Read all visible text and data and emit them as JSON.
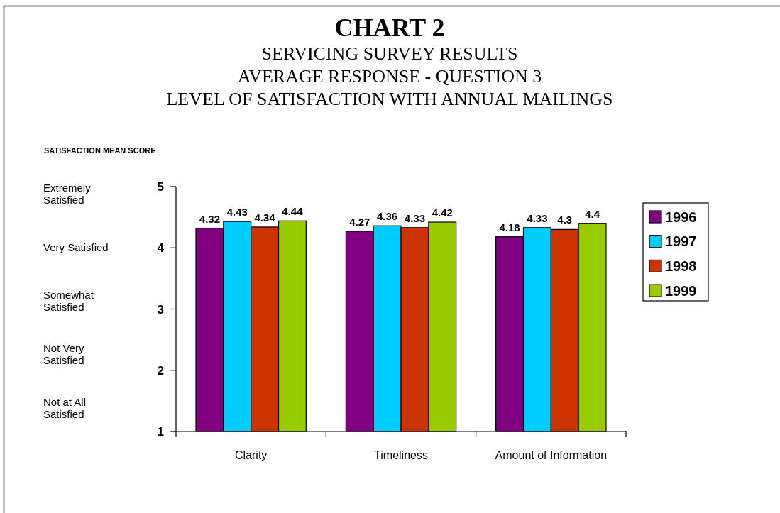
{
  "chart_data": {
    "type": "bar",
    "title": "CHART 2",
    "subtitle": "SERVICING SURVEY RESULTS\nAVERAGE RESPONSE - QUESTION 3\nLEVEL OF SATISFACTION WITH ANNUAL MAILINGS",
    "ylabel": "SATISFACTION MEAN SCORE",
    "annotations": [
      "Extremely Satisfied",
      "Very Satisfied",
      "Somewhat Satisfied",
      "Not Very Satisfied",
      "Not at All Satisfied"
    ],
    "categories": [
      "Clarity",
      "Timeliness",
      "Amount of Information"
    ],
    "series": [
      {
        "name": "1996",
        "color": "#800080",
        "values": [
          4.32,
          4.27,
          4.18
        ]
      },
      {
        "name": "1997",
        "color": "#00ccff",
        "values": [
          4.43,
          4.36,
          4.33
        ]
      },
      {
        "name": "1998",
        "color": "#cc3300",
        "values": [
          4.34,
          4.33,
          4.3
        ]
      },
      {
        "name": "1999",
        "color": "#99cc00",
        "values": [
          4.44,
          4.42,
          4.4
        ]
      }
    ],
    "ylim": [
      1,
      5
    ],
    "yticks": [
      1,
      2,
      3,
      4,
      5
    ],
    "data_labels": true,
    "legend": "right"
  }
}
